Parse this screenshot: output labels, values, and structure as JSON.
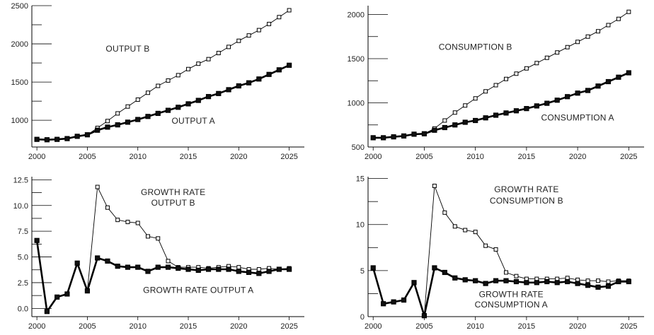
{
  "chart_data": [
    {
      "type": "line",
      "title": "",
      "xlabel": "",
      "ylabel": "",
      "xlim": [
        1999.5,
        2026.5
      ],
      "ylim": [
        650,
        2500
      ],
      "xticks": [
        2000,
        2005,
        2010,
        2015,
        2020,
        2025
      ],
      "yticks": [
        1000,
        1500,
        2000,
        2500
      ],
      "grid": false,
      "annotations": [
        {
          "text": "OUTPUT B",
          "at": [
            2009,
            1900
          ]
        },
        {
          "text": "OUTPUT A",
          "at": [
            2015.5,
            955
          ]
        }
      ],
      "x": [
        2000,
        2001,
        2002,
        2003,
        2004,
        2005,
        2006,
        2007,
        2008,
        2009,
        2010,
        2011,
        2012,
        2013,
        2014,
        2015,
        2016,
        2017,
        2018,
        2019,
        2020,
        2021,
        2022,
        2023,
        2024,
        2025
      ],
      "series": [
        {
          "name": "OUTPUT B",
          "style": "thin",
          "marker": "open",
          "values": [
            750,
            745,
            750,
            760,
            790,
            810,
            900,
            990,
            1090,
            1180,
            1270,
            1360,
            1450,
            1520,
            1590,
            1670,
            1740,
            1800,
            1880,
            1960,
            2040,
            2110,
            2180,
            2260,
            2350,
            2440
          ]
        },
        {
          "name": "OUTPUT A",
          "style": "thick",
          "marker": "filled",
          "values": [
            750,
            745,
            750,
            760,
            790,
            810,
            870,
            910,
            940,
            975,
            1010,
            1050,
            1090,
            1130,
            1170,
            1215,
            1260,
            1310,
            1350,
            1400,
            1450,
            1490,
            1540,
            1600,
            1660,
            1720
          ]
        }
      ]
    },
    {
      "type": "line",
      "title": "",
      "xlabel": "",
      "ylabel": "",
      "xlim": [
        1999.5,
        2026.5
      ],
      "ylim": [
        500,
        2100
      ],
      "xticks": [
        2000,
        2005,
        2010,
        2015,
        2020,
        2025
      ],
      "yticks": [
        500,
        1000,
        1500,
        2000
      ],
      "grid": false,
      "annotations": [
        {
          "text": "CONSUMPTION B",
          "at": [
            2010,
            1600
          ]
        },
        {
          "text": "CONSUMPTION A",
          "at": [
            2020,
            800
          ]
        }
      ],
      "x": [
        2000,
        2001,
        2002,
        2003,
        2004,
        2005,
        2006,
        2007,
        2008,
        2009,
        2010,
        2011,
        2012,
        2013,
        2014,
        2015,
        2016,
        2017,
        2018,
        2019,
        2020,
        2021,
        2022,
        2023,
        2024,
        2025
      ],
      "series": [
        {
          "name": "CONSUMPTION B",
          "style": "thin",
          "marker": "open",
          "values": [
            605,
            605,
            615,
            625,
            645,
            650,
            710,
            800,
            890,
            970,
            1050,
            1130,
            1200,
            1270,
            1330,
            1390,
            1450,
            1510,
            1570,
            1630,
            1690,
            1750,
            1810,
            1880,
            1950,
            2030
          ]
        },
        {
          "name": "CONSUMPTION A",
          "style": "thick",
          "marker": "filled",
          "values": [
            605,
            605,
            615,
            625,
            645,
            650,
            690,
            720,
            750,
            780,
            800,
            830,
            860,
            885,
            910,
            935,
            965,
            995,
            1030,
            1070,
            1110,
            1140,
            1190,
            1240,
            1290,
            1340
          ]
        }
      ]
    },
    {
      "type": "line",
      "title": "",
      "xlabel": "",
      "ylabel": "",
      "xlim": [
        1999.5,
        2026.5
      ],
      "ylim": [
        -0.8,
        12.8
      ],
      "xticks": [
        2000,
        2005,
        2010,
        2015,
        2020,
        2025
      ],
      "yticks": [
        0.0,
        2.5,
        5.0,
        7.5,
        10.0,
        12.5
      ],
      "ytick_labels": [
        "0.0",
        "2.5",
        "5.0",
        "7.5",
        "10.0",
        "12.5"
      ],
      "grid": false,
      "annotations": [
        {
          "text": "GROWTH RATE",
          "at": [
            2013.5,
            11.0
          ]
        },
        {
          "text": "OUTPUT B",
          "at": [
            2013.5,
            10.0
          ]
        },
        {
          "text": "GROWTH RATE OUTPUT A",
          "at": [
            2016,
            1.5
          ]
        }
      ],
      "x": [
        2000,
        2001,
        2002,
        2003,
        2004,
        2005,
        2006,
        2007,
        2008,
        2009,
        2010,
        2011,
        2012,
        2013,
        2014,
        2015,
        2016,
        2017,
        2018,
        2019,
        2020,
        2021,
        2022,
        2023,
        2024,
        2025
      ],
      "series": [
        {
          "name": "GROWTH RATE OUTPUT B",
          "style": "thin",
          "marker": "open",
          "values": [
            6.6,
            -0.3,
            1.1,
            1.4,
            4.4,
            1.7,
            11.8,
            9.8,
            8.6,
            8.4,
            8.3,
            7.0,
            6.8,
            4.6,
            4.0,
            4.0,
            4.0,
            3.9,
            4.0,
            4.1,
            4.0,
            3.8,
            3.8,
            3.9,
            3.8,
            3.9
          ]
        },
        {
          "name": "GROWTH RATE OUTPUT A",
          "style": "thick",
          "marker": "filled",
          "values": [
            6.6,
            -0.3,
            1.1,
            1.4,
            4.4,
            1.7,
            4.9,
            4.6,
            4.1,
            4.0,
            4.0,
            3.6,
            4.0,
            4.0,
            3.9,
            3.8,
            3.7,
            3.8,
            3.8,
            3.8,
            3.6,
            3.5,
            3.4,
            3.6,
            3.8,
            3.8
          ]
        }
      ]
    },
    {
      "type": "line",
      "title": "",
      "xlabel": "",
      "ylabel": "",
      "xlim": [
        1999.5,
        2026.5
      ],
      "ylim": [
        0,
        15.2
      ],
      "xticks": [
        2000,
        2005,
        2010,
        2015,
        2020,
        2025
      ],
      "yticks": [
        0,
        5,
        10,
        15
      ],
      "grid": false,
      "annotations": [
        {
          "text": "GROWTH RATE",
          "at": [
            2015,
            13.5
          ]
        },
        {
          "text": "CONSUMPTION B",
          "at": [
            2015,
            12.3
          ]
        },
        {
          "text": "GROWTH RATE",
          "at": [
            2013.5,
            2.1
          ]
        },
        {
          "text": "CONSUMPTION A",
          "at": [
            2013.5,
            1.0
          ]
        }
      ],
      "x": [
        2000,
        2001,
        2002,
        2003,
        2004,
        2005,
        2006,
        2007,
        2008,
        2009,
        2010,
        2011,
        2012,
        2013,
        2014,
        2015,
        2016,
        2017,
        2018,
        2019,
        2020,
        2021,
        2022,
        2023,
        2024,
        2025
      ],
      "series": [
        {
          "name": "GROWTH RATE CONSUMPTION B",
          "style": "thin",
          "marker": "open",
          "values": [
            5.3,
            1.4,
            1.6,
            1.8,
            3.7,
            0.1,
            14.2,
            11.3,
            9.8,
            9.4,
            9.2,
            7.7,
            7.3,
            4.8,
            4.4,
            4.1,
            4.1,
            4.1,
            4.1,
            4.2,
            4.0,
            3.9,
            3.9,
            3.8,
            3.9,
            3.9
          ]
        },
        {
          "name": "GROWTH RATE CONSUMPTION A",
          "style": "thick",
          "marker": "filled",
          "values": [
            5.3,
            1.4,
            1.6,
            1.8,
            3.7,
            0.1,
            5.3,
            4.8,
            4.2,
            4.0,
            3.9,
            3.6,
            3.9,
            3.9,
            3.8,
            3.7,
            3.7,
            3.8,
            3.7,
            3.8,
            3.6,
            3.4,
            3.2,
            3.3,
            3.8,
            3.8
          ]
        }
      ]
    }
  ]
}
